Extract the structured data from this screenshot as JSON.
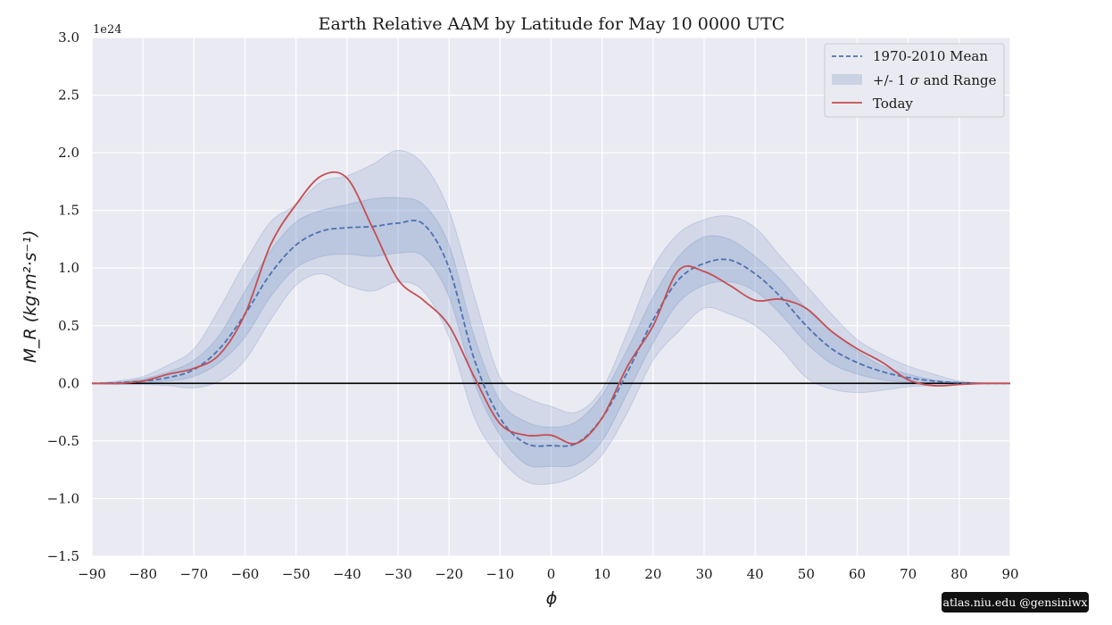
{
  "chart_data": {
    "type": "area",
    "title": "Earth Relative AAM by Latitude for May 10 0000 UTC",
    "xlabel": "ϕ",
    "ylabel": "M_R (kg·m²·s⁻¹)",
    "y_offset_text": "1e24",
    "xlim": [
      -90,
      90
    ],
    "ylim": [
      -1.5,
      3.0
    ],
    "x_ticks": [
      -90,
      -80,
      -70,
      -60,
      -50,
      -40,
      -30,
      -20,
      -10,
      0,
      10,
      20,
      30,
      40,
      50,
      60,
      70,
      80,
      90
    ],
    "x_tick_labels": [
      "−90",
      "−80",
      "−70",
      "−60",
      "−50",
      "−40",
      "−30",
      "−20",
      "−10",
      "0",
      "10",
      "20",
      "30",
      "40",
      "50",
      "60",
      "70",
      "80",
      "90"
    ],
    "y_ticks": [
      -1.5,
      -1.0,
      -0.5,
      0.0,
      0.5,
      1.0,
      1.5,
      2.0,
      2.5,
      3.0
    ],
    "y_tick_labels": [
      "−1.5",
      "−1.0",
      "−0.5",
      "0.0",
      "0.5",
      "1.0",
      "1.5",
      "2.0",
      "2.5",
      "3.0"
    ],
    "grid": true,
    "legend_position": "top-right",
    "legend": {
      "mean_label": "1970-2010 Mean",
      "band_label_prefix": "+/- 1 ",
      "band_label_sigma": "σ",
      "band_label_suffix": " and Range",
      "today_label": "Today"
    },
    "colors": {
      "mean": "#4c72b0",
      "band": "#4c72b0",
      "today": "#c44e52",
      "background": "#eaeaf2",
      "grid": "#ffffff",
      "zero_line": "#000000"
    },
    "x": [
      -90,
      -85,
      -80,
      -75,
      -70,
      -65,
      -60,
      -55,
      -50,
      -45,
      -40,
      -35,
      -30,
      -25,
      -20,
      -15,
      -10,
      -5,
      0,
      5,
      10,
      15,
      20,
      25,
      30,
      35,
      40,
      45,
      50,
      55,
      60,
      65,
      70,
      75,
      80,
      85,
      90
    ],
    "series": [
      {
        "name": "1970-2010 Mean",
        "values": [
          0.0,
          0.005,
          0.02,
          0.05,
          0.12,
          0.3,
          0.6,
          0.95,
          1.2,
          1.32,
          1.35,
          1.36,
          1.39,
          1.38,
          1.0,
          0.2,
          -0.3,
          -0.52,
          -0.54,
          -0.52,
          -0.3,
          0.1,
          0.55,
          0.9,
          1.04,
          1.07,
          0.95,
          0.75,
          0.5,
          0.3,
          0.18,
          0.1,
          0.05,
          0.02,
          0.005,
          0.0,
          0.0
        ]
      },
      {
        "name": "Today",
        "values": [
          0.0,
          0.0,
          0.02,
          0.08,
          0.13,
          0.25,
          0.6,
          1.2,
          1.55,
          1.8,
          1.78,
          1.35,
          0.9,
          0.72,
          0.5,
          0.05,
          -0.35,
          -0.45,
          -0.45,
          -0.52,
          -0.3,
          0.15,
          0.5,
          0.98,
          0.97,
          0.85,
          0.72,
          0.73,
          0.65,
          0.45,
          0.3,
          0.18,
          0.03,
          -0.02,
          -0.01,
          0.0,
          0.0
        ]
      },
      {
        "name": "+1 σ",
        "values": [
          0.0,
          0.01,
          0.04,
          0.1,
          0.2,
          0.42,
          0.8,
          1.15,
          1.4,
          1.5,
          1.55,
          1.6,
          1.61,
          1.55,
          1.2,
          0.4,
          -0.15,
          -0.33,
          -0.38,
          -0.33,
          -0.1,
          0.3,
          0.75,
          1.1,
          1.27,
          1.25,
          1.1,
          0.9,
          0.65,
          0.45,
          0.28,
          0.15,
          0.08,
          0.03,
          0.01,
          0.0,
          0.0
        ]
      },
      {
        "name": "−1 σ",
        "values": [
          0.0,
          0.0,
          0.01,
          0.02,
          0.06,
          0.18,
          0.4,
          0.75,
          1.0,
          1.1,
          1.12,
          1.1,
          1.13,
          1.1,
          0.75,
          0.0,
          -0.45,
          -0.7,
          -0.72,
          -0.7,
          -0.5,
          -0.08,
          0.35,
          0.7,
          0.85,
          0.88,
          0.8,
          0.6,
          0.35,
          0.17,
          0.08,
          0.03,
          0.01,
          0.0,
          0.0,
          0.0,
          0.0
        ]
      },
      {
        "name": "Range max",
        "values": [
          0.0,
          0.02,
          0.06,
          0.16,
          0.3,
          0.65,
          1.05,
          1.4,
          1.55,
          1.75,
          1.8,
          1.9,
          2.02,
          1.9,
          1.5,
          0.75,
          0.05,
          -0.12,
          -0.2,
          -0.25,
          -0.05,
          0.45,
          1.0,
          1.3,
          1.42,
          1.45,
          1.35,
          1.1,
          0.85,
          0.6,
          0.38,
          0.25,
          0.15,
          0.08,
          0.02,
          0.005,
          0.0
        ]
      },
      {
        "name": "Range min",
        "values": [
          0.0,
          -0.01,
          -0.01,
          -0.02,
          -0.04,
          0.02,
          0.2,
          0.55,
          0.85,
          0.95,
          0.85,
          0.8,
          0.88,
          0.8,
          0.4,
          -0.3,
          -0.65,
          -0.85,
          -0.87,
          -0.8,
          -0.62,
          -0.25,
          0.2,
          0.45,
          0.65,
          0.6,
          0.5,
          0.3,
          0.05,
          -0.05,
          -0.08,
          -0.06,
          -0.03,
          -0.02,
          -0.01,
          0.0,
          0.0
        ]
      }
    ]
  },
  "watermark": "atlas.niu.edu  @gensiniwx"
}
